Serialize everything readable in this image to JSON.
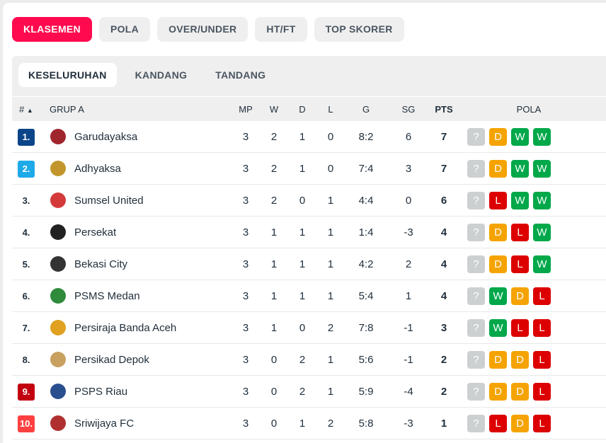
{
  "tabs": [
    "KLASEMEN",
    "POLA",
    "OVER/UNDER",
    "HT/FT",
    "TOP SKORER"
  ],
  "subtabs": [
    "KESELURUHAN",
    "KANDANG",
    "TANDANG"
  ],
  "header": {
    "rank": "#",
    "sort_icon": "▲",
    "group": "GRUP A",
    "mp": "MP",
    "w": "W",
    "d": "D",
    "l": "L",
    "g": "G",
    "sg": "SG",
    "pts": "PTS",
    "pola": "POLA"
  },
  "colors": {
    "accent": "#ff0a4e",
    "W": "#00a84a",
    "D": "#f5a300",
    "L": "#dd0000",
    "?": "#cdd0d1"
  },
  "rows": [
    {
      "rank": "1.",
      "rank_color": "#0b4589",
      "team": "Garudayaksa",
      "logo": "#a0262e",
      "mp": "3",
      "w": "2",
      "d": "1",
      "l": "0",
      "g": "8:2",
      "sg": "6",
      "pts": "7",
      "form": [
        "?",
        "D",
        "W",
        "W"
      ]
    },
    {
      "rank": "2.",
      "rank_color": "#1eaae9",
      "team": "Adhyaksa",
      "logo": "#c2962c",
      "mp": "3",
      "w": "2",
      "d": "1",
      "l": "0",
      "g": "7:4",
      "sg": "3",
      "pts": "7",
      "form": [
        "?",
        "D",
        "W",
        "W"
      ]
    },
    {
      "rank": "3.",
      "rank_color": "",
      "team": "Sumsel United",
      "logo": "#d43a3a",
      "mp": "3",
      "w": "2",
      "d": "0",
      "l": "1",
      "g": "4:4",
      "sg": "0",
      "pts": "6",
      "form": [
        "?",
        "L",
        "W",
        "W"
      ]
    },
    {
      "rank": "4.",
      "rank_color": "",
      "team": "Persekat",
      "logo": "#222222",
      "mp": "3",
      "w": "1",
      "d": "1",
      "l": "1",
      "g": "1:4",
      "sg": "-3",
      "pts": "4",
      "form": [
        "?",
        "D",
        "L",
        "W"
      ]
    },
    {
      "rank": "5.",
      "rank_color": "",
      "team": "Bekasi City",
      "logo": "#333333",
      "mp": "3",
      "w": "1",
      "d": "1",
      "l": "1",
      "g": "4:2",
      "sg": "2",
      "pts": "4",
      "form": [
        "?",
        "D",
        "L",
        "W"
      ]
    },
    {
      "rank": "6.",
      "rank_color": "",
      "team": "PSMS Medan",
      "logo": "#2f8a3c",
      "mp": "3",
      "w": "1",
      "d": "1",
      "l": "1",
      "g": "5:4",
      "sg": "1",
      "pts": "4",
      "form": [
        "?",
        "W",
        "D",
        "L"
      ]
    },
    {
      "rank": "7.",
      "rank_color": "",
      "team": "Persiraja Banda Aceh",
      "logo": "#e0a020",
      "mp": "3",
      "w": "1",
      "d": "0",
      "l": "2",
      "g": "7:8",
      "sg": "-1",
      "pts": "3",
      "form": [
        "?",
        "W",
        "L",
        "L"
      ]
    },
    {
      "rank": "8.",
      "rank_color": "",
      "team": "Persikad Depok",
      "logo": "#c8a060",
      "mp": "3",
      "w": "0",
      "d": "2",
      "l": "1",
      "g": "5:6",
      "sg": "-1",
      "pts": "2",
      "form": [
        "?",
        "D",
        "D",
        "L"
      ]
    },
    {
      "rank": "9.",
      "rank_color": "#c20010",
      "team": "PSPS Riau",
      "logo": "#2a4f8f",
      "mp": "3",
      "w": "0",
      "d": "2",
      "l": "1",
      "g": "5:9",
      "sg": "-4",
      "pts": "2",
      "form": [
        "?",
        "D",
        "D",
        "L"
      ]
    },
    {
      "rank": "10.",
      "rank_color": "#ff4040",
      "team": "Sriwijaya FC",
      "logo": "#b03030",
      "mp": "3",
      "w": "0",
      "d": "1",
      "l": "2",
      "g": "5:8",
      "sg": "-3",
      "pts": "1",
      "form": [
        "?",
        "L",
        "D",
        "L"
      ]
    }
  ]
}
